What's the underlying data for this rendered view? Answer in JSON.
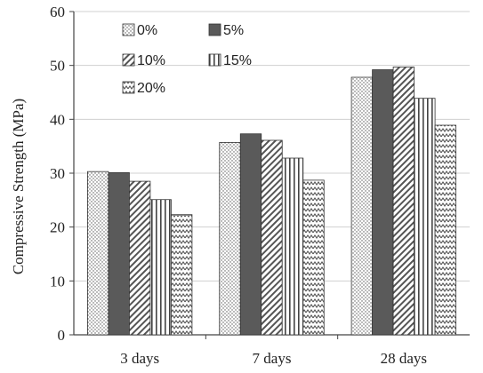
{
  "chart_data": {
    "type": "bar",
    "categories": [
      "3 days",
      "7 days",
      "28 days"
    ],
    "series": [
      {
        "name": "0%",
        "values": [
          30.3,
          35.7,
          47.8
        ],
        "pattern": "dots"
      },
      {
        "name": "5%",
        "values": [
          30.1,
          37.3,
          49.2
        ],
        "pattern": "solid"
      },
      {
        "name": "10%",
        "values": [
          28.5,
          36.1,
          49.7
        ],
        "pattern": "diag"
      },
      {
        "name": "15%",
        "values": [
          25.1,
          32.8,
          43.9
        ],
        "pattern": "vlines"
      },
      {
        "name": "20%",
        "values": [
          22.3,
          28.7,
          38.9
        ],
        "pattern": "zigzag"
      }
    ],
    "title": "",
    "xlabel": "",
    "ylabel": "Compressive Strength (MPa)",
    "ylim": [
      0,
      60
    ],
    "yticks": [
      0,
      10,
      20,
      30,
      40,
      50,
      60
    ],
    "grid": "horizontal",
    "legend_position": "top-left, inside"
  },
  "colors": {
    "bar_outline": "#333333",
    "solid_fill": "#5a5a5a",
    "pattern_ink": "#555555",
    "grid": "#d0d0d0",
    "axis": "#444444"
  }
}
